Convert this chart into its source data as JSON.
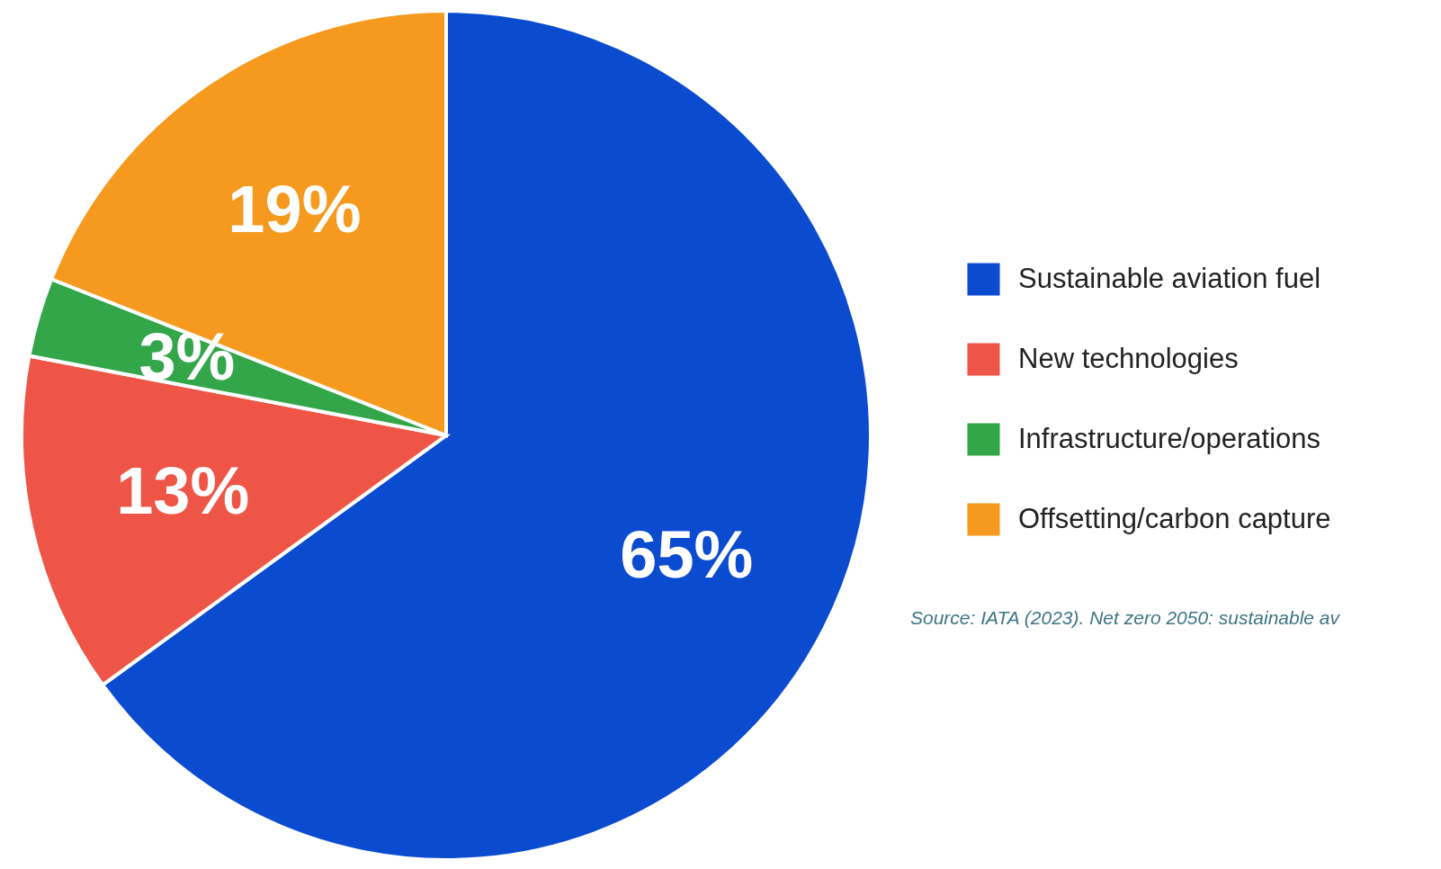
{
  "chart_data": {
    "type": "pie",
    "categories": [
      "Sustainable aviation fuel",
      "New technologies",
      "Infrastructure/operations",
      "Offsetting/carbon capture"
    ],
    "values": [
      65,
      13,
      3,
      19
    ],
    "colors": [
      "#0a4bd0",
      "#ee5546",
      "#34a64a",
      "#f59a1e"
    ],
    "value_labels": [
      "65%",
      "13%",
      "3%",
      "19%"
    ],
    "legend": "right",
    "annotations": [
      "Source: IATA (2023). Net zero 2050: sustainable av"
    ]
  }
}
